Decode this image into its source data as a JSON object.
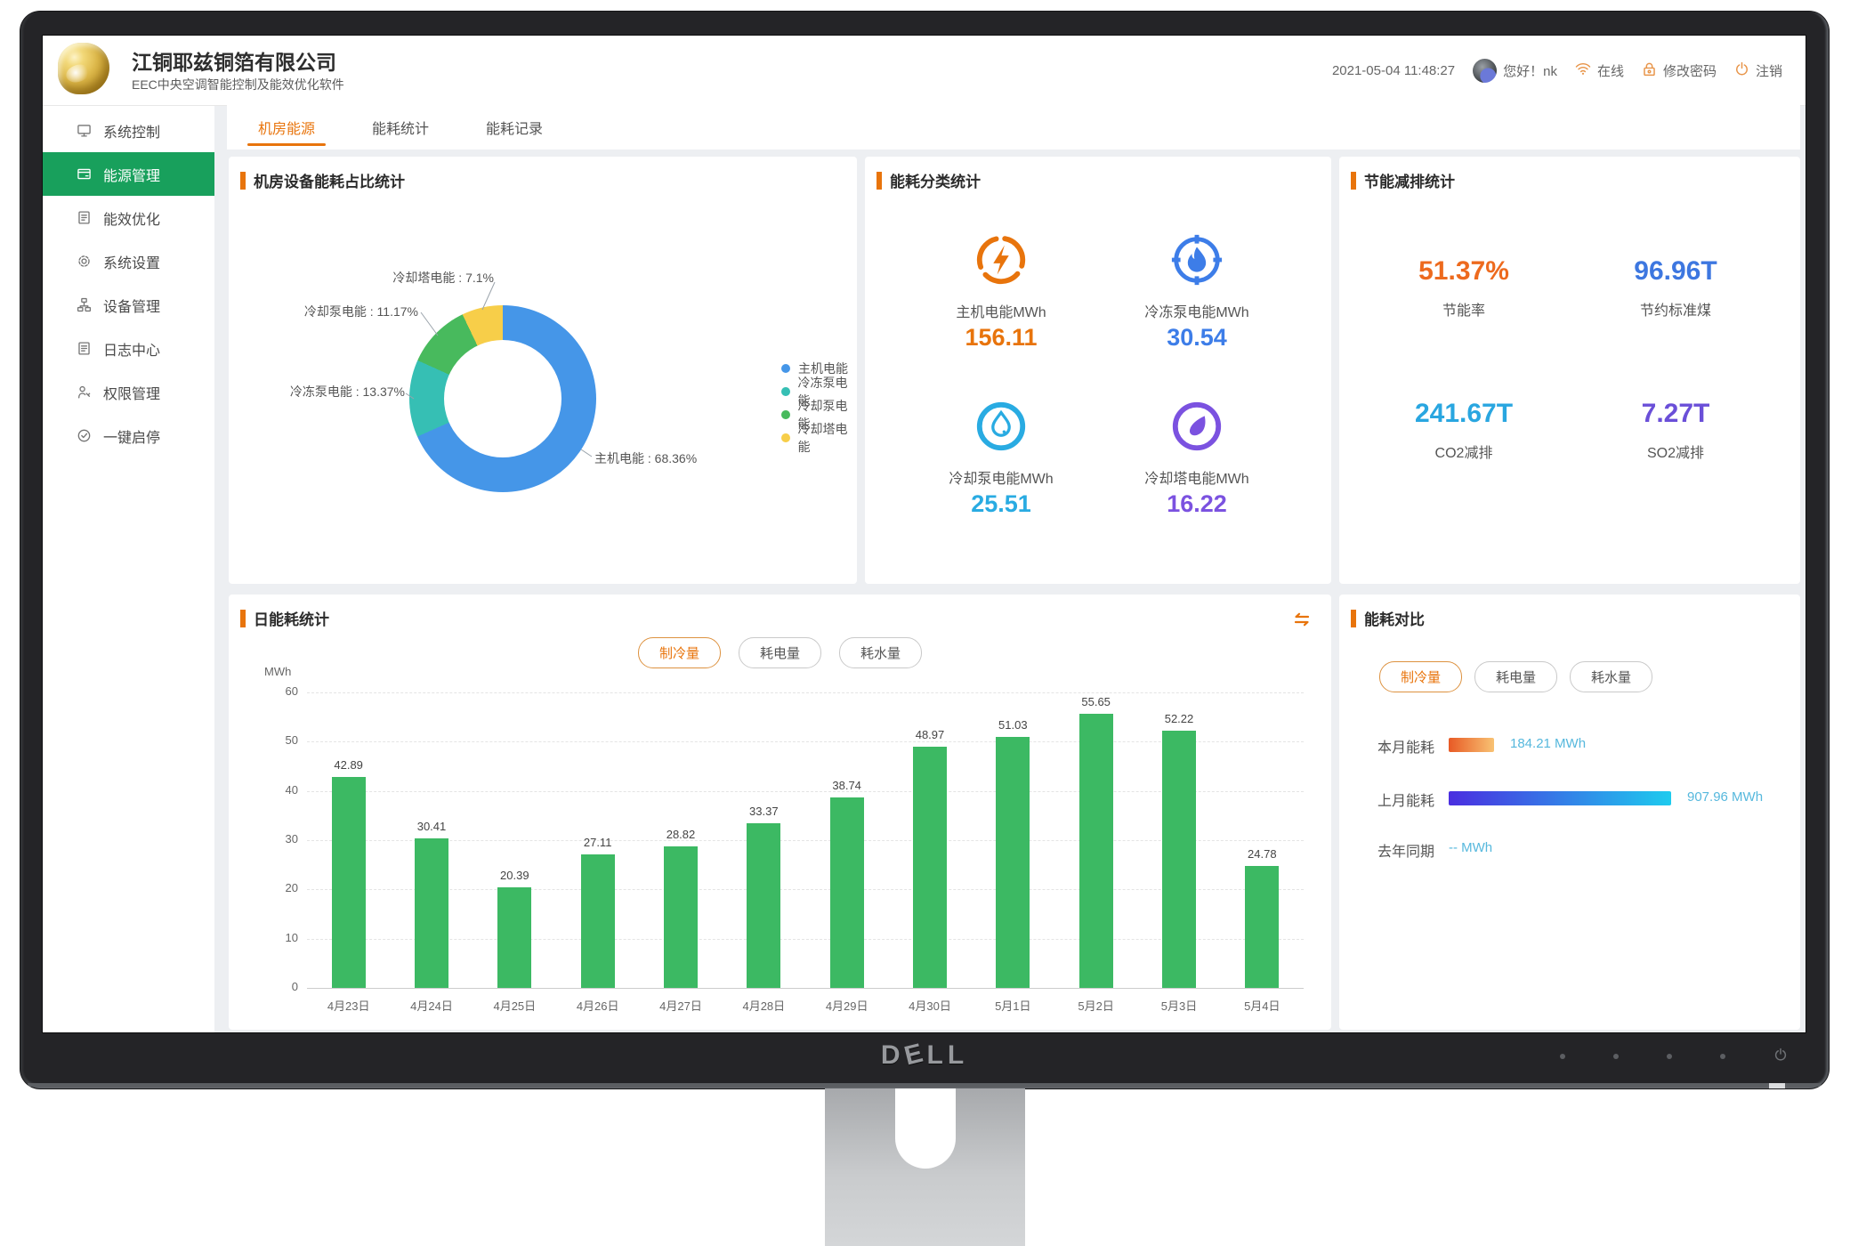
{
  "monitor": {
    "brand": "DELL",
    "buttons": [
      "menu-dot-1",
      "menu-dot-2",
      "menu-dot-3",
      "menu-dot-4",
      "power-button"
    ]
  },
  "header": {
    "company": "江铜耶兹铜箔有限公司",
    "product": "EEC中央空调智能控制及能效优化软件",
    "datetime": "2021-05-04 11:48:27",
    "greeting": "您好！nk",
    "online": "在线",
    "change_password": "修改密码",
    "logout": "注销"
  },
  "sidebar": {
    "items": [
      {
        "label": "系统控制",
        "icon": "monitor-icon",
        "active": false
      },
      {
        "label": "能源管理",
        "icon": "energy-icon",
        "active": true
      },
      {
        "label": "能效优化",
        "icon": "optimize-icon",
        "active": false
      },
      {
        "label": "系统设置",
        "icon": "gear-icon",
        "active": false
      },
      {
        "label": "设备管理",
        "icon": "device-icon",
        "active": false
      },
      {
        "label": "日志中心",
        "icon": "log-icon",
        "active": false
      },
      {
        "label": "权限管理",
        "icon": "permission-icon",
        "active": false
      },
      {
        "label": "一键启停",
        "icon": "onekey-icon",
        "active": false
      }
    ]
  },
  "tabs": [
    {
      "label": "机房能源",
      "active": true
    },
    {
      "label": "能耗统计",
      "active": false
    },
    {
      "label": "能耗记录",
      "active": false
    }
  ],
  "panels": {
    "pie": {
      "title": "机房设备能耗占比统计"
    },
    "category": {
      "title": "能耗分类统计",
      "items": [
        {
          "label": "主机电能MWh",
          "value": "156.11",
          "color": "#e8740c",
          "icon": "bolt-icon"
        },
        {
          "label": "冷冻泵电能MWh",
          "value": "30.54",
          "color": "#3d7de8",
          "icon": "flame-icon"
        },
        {
          "label": "冷却泵电能MWh",
          "value": "25.51",
          "color": "#29abe2",
          "icon": "waterdrop-icon"
        },
        {
          "label": "冷却塔电能MWh",
          "value": "16.22",
          "color": "#7b52e0",
          "icon": "leaf-icon"
        }
      ]
    },
    "savings": {
      "title": "节能减排统计",
      "items": [
        {
          "value": "51.37%",
          "label": "节能率",
          "color": "#ed6a1e"
        },
        {
          "value": "96.96T",
          "label": "节约标准煤",
          "color": "#3d77e0"
        },
        {
          "value": "241.67T",
          "label": "CO2减排",
          "color": "#29a6e0"
        },
        {
          "value": "7.27T",
          "label": "SO2减排",
          "color": "#6a4fd8"
        }
      ]
    },
    "daily": {
      "title": "日能耗统计",
      "unit": "MWh",
      "buttons": [
        {
          "label": "制冷量",
          "active": true
        },
        {
          "label": "耗电量",
          "active": false
        },
        {
          "label": "耗水量",
          "active": false
        }
      ]
    },
    "compare": {
      "title": "能耗对比",
      "buttons": [
        {
          "label": "制冷量",
          "active": true
        },
        {
          "label": "耗电量",
          "active": false
        },
        {
          "label": "耗水量",
          "active": false
        }
      ],
      "rows": [
        {
          "label": "本月能耗",
          "value": 184.21,
          "value_text": "184.21 MWh",
          "bar": "orange"
        },
        {
          "label": "上月能耗",
          "value": 907.96,
          "value_text": "907.96 MWh",
          "bar": "blue"
        },
        {
          "label": "去年同期",
          "value": null,
          "value_text": "-- MWh",
          "bar": null
        }
      ]
    }
  },
  "chart_data": [
    {
      "type": "pie",
      "title": "机房设备能耗占比统计",
      "labels": [
        "主机电能",
        "冷冻泵电能",
        "冷却泵电能",
        "冷却塔电能"
      ],
      "values": [
        68.36,
        13.37,
        11.17,
        7.1
      ],
      "unit": "%",
      "colors": [
        "#4596e8",
        "#36bfb4",
        "#48ba5d",
        "#f7ce49"
      ],
      "donut": true,
      "legend_position": "right"
    },
    {
      "type": "bar",
      "title": "日能耗统计",
      "series_name": "制冷量",
      "categories": [
        "4月23日",
        "4月24日",
        "4月25日",
        "4月26日",
        "4月27日",
        "4月28日",
        "4月29日",
        "4月30日",
        "5月1日",
        "5月2日",
        "5月3日",
        "5月4日"
      ],
      "values": [
        42.89,
        30.41,
        20.39,
        27.11,
        28.82,
        33.37,
        38.74,
        48.97,
        51.03,
        55.65,
        52.22,
        24.78
      ],
      "ylabel": "MWh",
      "ylim": [
        0,
        60
      ],
      "ytick_step": 10,
      "bar_color": "#3cb963",
      "grid": true
    }
  ]
}
